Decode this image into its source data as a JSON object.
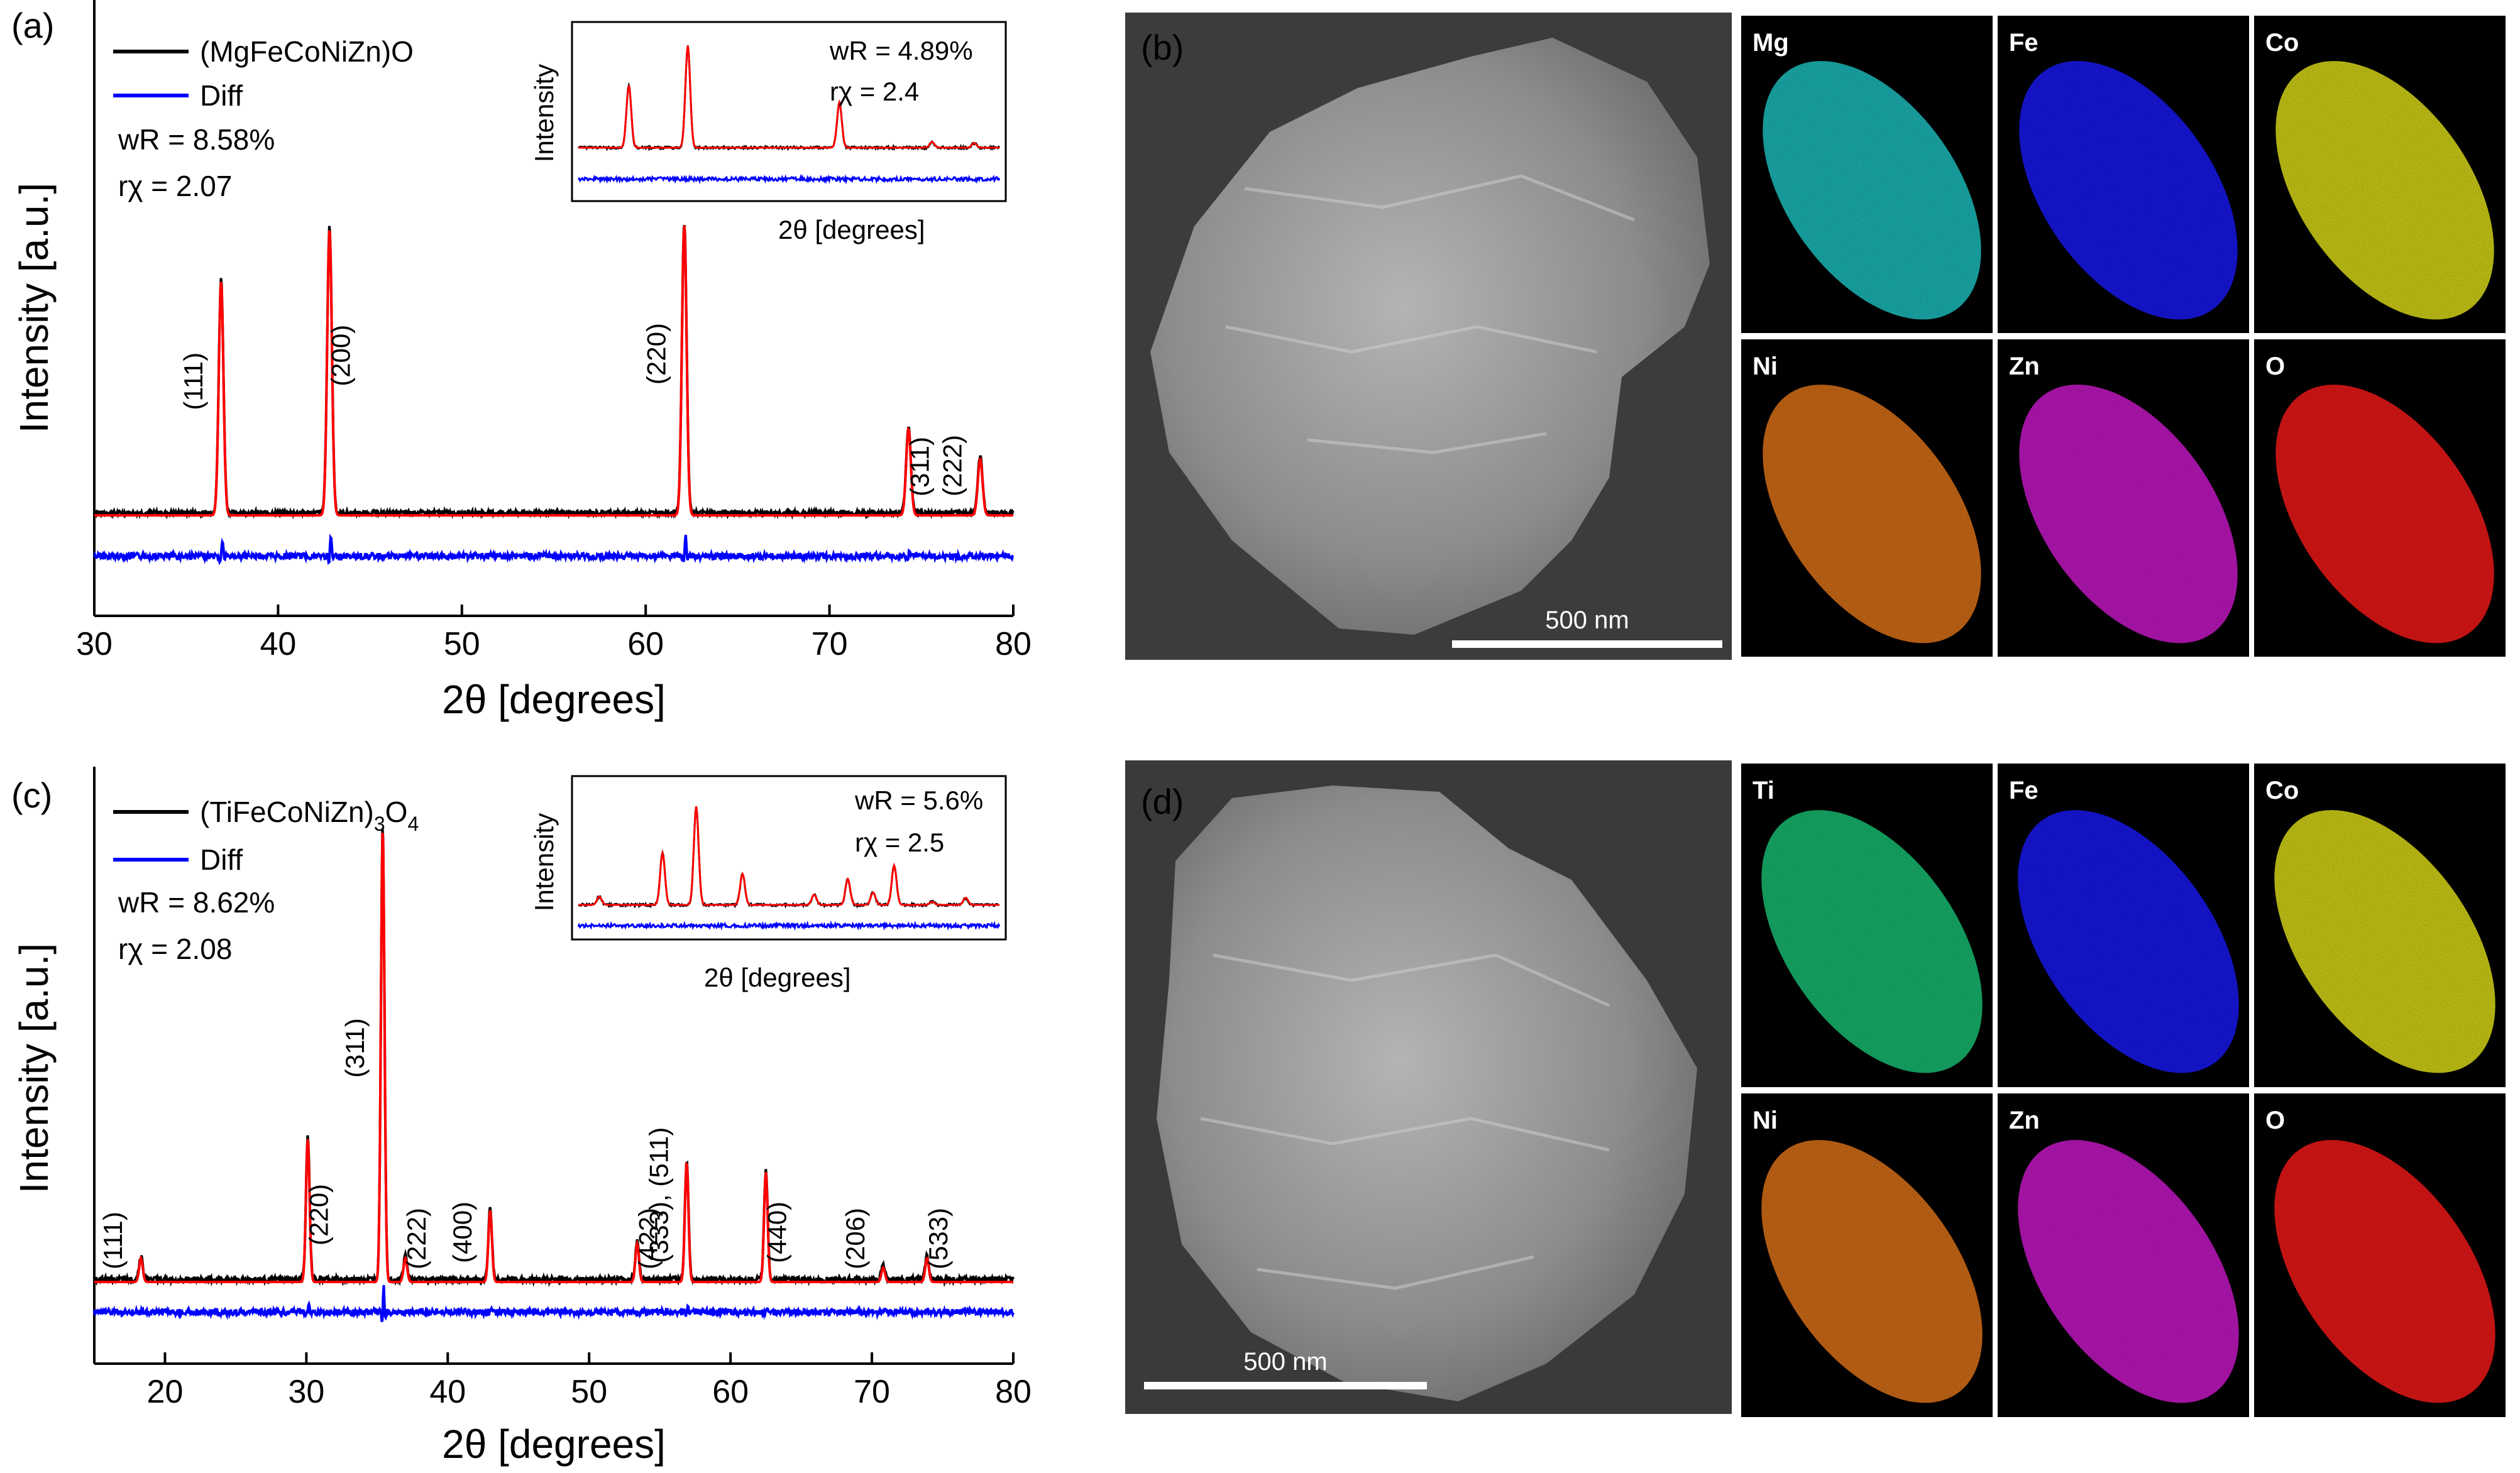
{
  "panels": {
    "a": {
      "label": "(a)",
      "legend": {
        "sample": "(MgFeCoNiZn)O",
        "diff": "Diff"
      },
      "stats": {
        "wR": "wR = 8.58%",
        "rchi": "rχ = 2.07"
      },
      "inset": {
        "ylabel": "Intensity",
        "xlabel": "2θ [degrees]",
        "wR": "wR =  4.89%",
        "rchi": "rχ =  2.4"
      }
    },
    "b": {
      "label": "(b)",
      "scale_bar": "500 nm",
      "maps": [
        {
          "label": "Mg",
          "color": "#1fc8c8"
        },
        {
          "label": "Fe",
          "color": "#1a1aff"
        },
        {
          "label": "Co",
          "color": "#e6e61a"
        },
        {
          "label": "Ni",
          "color": "#e8781a"
        },
        {
          "label": "Zn",
          "color": "#d21ad2"
        },
        {
          "label": "O",
          "color": "#ff1a1a"
        }
      ]
    },
    "c": {
      "label": "(c)",
      "legend": {
        "sample_main": "(TiFeCoNiZn)",
        "sample_sub": "3",
        "sample_tail": "O",
        "sample_sub2": "4",
        "diff": "Diff"
      },
      "stats": {
        "wR": "wR = 8.62%",
        "rchi": "rχ = 2.08"
      },
      "inset": {
        "ylabel": "Intensity",
        "xlabel": "2θ [degrees]",
        "wR": "wR =  5.6%",
        "rchi": "rχ =  2.5"
      }
    },
    "d": {
      "label": "(d)",
      "scale_bar": "500 nm",
      "maps": [
        {
          "label": "Ti",
          "color": "#1ac878"
        },
        {
          "label": "Fe",
          "color": "#1a1aff"
        },
        {
          "label": "Co",
          "color": "#e6e61a"
        },
        {
          "label": "Ni",
          "color": "#e8781a"
        },
        {
          "label": "Zn",
          "color": "#d21ad2"
        },
        {
          "label": "O",
          "color": "#ff1a1a"
        }
      ]
    }
  },
  "colors": {
    "observed": "#000000",
    "calculated": "#ff0000",
    "difference": "#0000ff"
  },
  "chart_data": [
    {
      "type": "line",
      "panel": "a",
      "xlabel": "2θ [degrees]",
      "ylabel": "Intensity [a.u.]",
      "xlim": [
        30,
        80
      ],
      "xticks": [
        30,
        40,
        50,
        60,
        70,
        80
      ],
      "grid": false,
      "legend_position": "top-left",
      "series": [
        {
          "name": "(MgFeCoNiZn)O",
          "color": "#000000"
        },
        {
          "color": "#ff0000"
        },
        {
          "name": "Diff",
          "color": "#0000ff"
        }
      ],
      "peaks": [
        {
          "x": 36.9,
          "height": 0.62,
          "label": "(111)"
        },
        {
          "x": 42.8,
          "height": 0.76,
          "label": "(200)"
        },
        {
          "x": 62.1,
          "height": 0.77,
          "label": "(220)"
        },
        {
          "x": 74.3,
          "height": 0.23,
          "label": "(311)"
        },
        {
          "x": 78.2,
          "height": 0.15,
          "label": "(222)"
        }
      ]
    },
    {
      "type": "line",
      "panel": "c",
      "xlabel": "2θ [degrees]",
      "ylabel": "Intensity [a.u.]",
      "xlim": [
        15,
        80
      ],
      "xticks": [
        20,
        30,
        40,
        50,
        60,
        70,
        80
      ],
      "grid": false,
      "legend_position": "top-left",
      "series": [
        {
          "name": "(TiFeCoNiZn)3O4",
          "color": "#000000"
        },
        {
          "color": "#ff0000"
        },
        {
          "name": "Diff",
          "color": "#0000ff"
        }
      ],
      "peaks": [
        {
          "x": 18.3,
          "height": 0.05,
          "label": "(111)"
        },
        {
          "x": 30.1,
          "height": 0.3,
          "label": "(220)"
        },
        {
          "x": 35.4,
          "height": 0.95,
          "label": "(311)"
        },
        {
          "x": 37.0,
          "height": 0.05,
          "label": "(222)"
        },
        {
          "x": 43.0,
          "height": 0.15,
          "label": "(400)"
        },
        {
          "x": 53.4,
          "height": 0.08,
          "label": "(422)"
        },
        {
          "x": 56.9,
          "height": 0.25,
          "label": "(333), (511)"
        },
        {
          "x": 62.5,
          "height": 0.23,
          "label": "(440)"
        },
        {
          "x": 70.8,
          "height": 0.03,
          "label": "(206)"
        },
        {
          "x": 73.9,
          "height": 0.05,
          "label": "(533)"
        }
      ]
    }
  ]
}
